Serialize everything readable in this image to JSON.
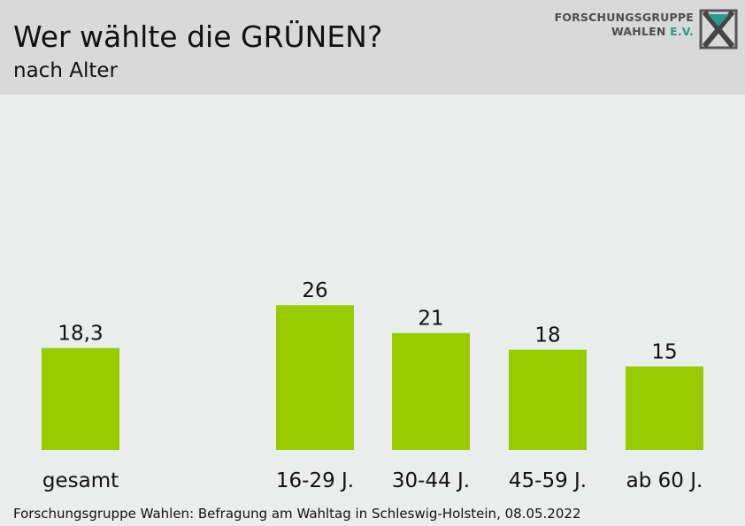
{
  "header": {
    "title": "Wer wählte die GRÜNEN?",
    "subtitle": "nach Alter"
  },
  "logo": {
    "line1": "FORSCHUNGSGRUPPE",
    "line2_main": "WAHLEN",
    "line2_accent": "E.V.",
    "icon": "ballot-cross-logo-icon",
    "accent_color": "#2a9b8a"
  },
  "footer": {
    "source": "Forschungsgruppe Wahlen: Befragung am Wahltag in Schleswig-Holstein, 08.05.2022"
  },
  "colors": {
    "bar": "#99cc00",
    "header_bg": "#d9d9d9",
    "plot_bg": "#eaedec"
  },
  "chart_data": {
    "type": "bar",
    "title": "Wer wählte die GRÜNEN?",
    "subtitle": "nach Alter",
    "categories": [
      "gesamt",
      "16-29 J.",
      "30-44 J.",
      "45-59 J.",
      "ab 60 J."
    ],
    "values": [
      18.3,
      26,
      21,
      18,
      15
    ],
    "value_labels": [
      "18,3",
      "26",
      "21",
      "18",
      "15"
    ],
    "ylim": [
      0,
      45
    ],
    "grid": false,
    "legend": "none"
  }
}
